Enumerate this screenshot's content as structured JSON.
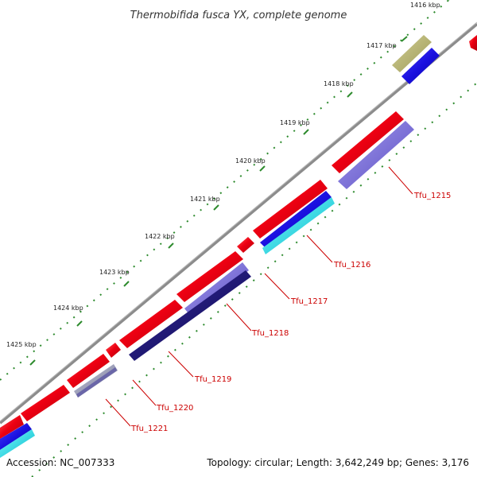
{
  "title": "Thermobifida fusca YX, complete genome",
  "footer": {
    "accession": "Accession: NC_007333",
    "summary": "Topology: circular; Length: 3,642,249 bp; Genes: 3,176"
  },
  "colors": {
    "backbone": "#8c8c8c",
    "tick": "#2e8b2e",
    "forward_gene": "#e8001c",
    "reverse_gene": "#1a10e0",
    "rna_gene": "#b3b06a",
    "cds_light": "#7c6fd8",
    "cds_dark": "#120a7a",
    "cds_grey": "#8e90b8",
    "cds_cyan": "#00e5f0",
    "label": "#cc0000"
  },
  "ticks": [
    "1416 kbp",
    "1417 kbp",
    "1418 kbp",
    "1419 kbp",
    "1420 kbp",
    "1421 kbp",
    "1422 kbp",
    "1423 kbp",
    "1424 kbp",
    "1425 kbp"
  ],
  "gene_labels": [
    "Tfu_1215",
    "Tfu_1216",
    "Tfu_1217",
    "Tfu_1218",
    "Tfu_1219",
    "Tfu_1220",
    "Tfu_1221"
  ]
}
